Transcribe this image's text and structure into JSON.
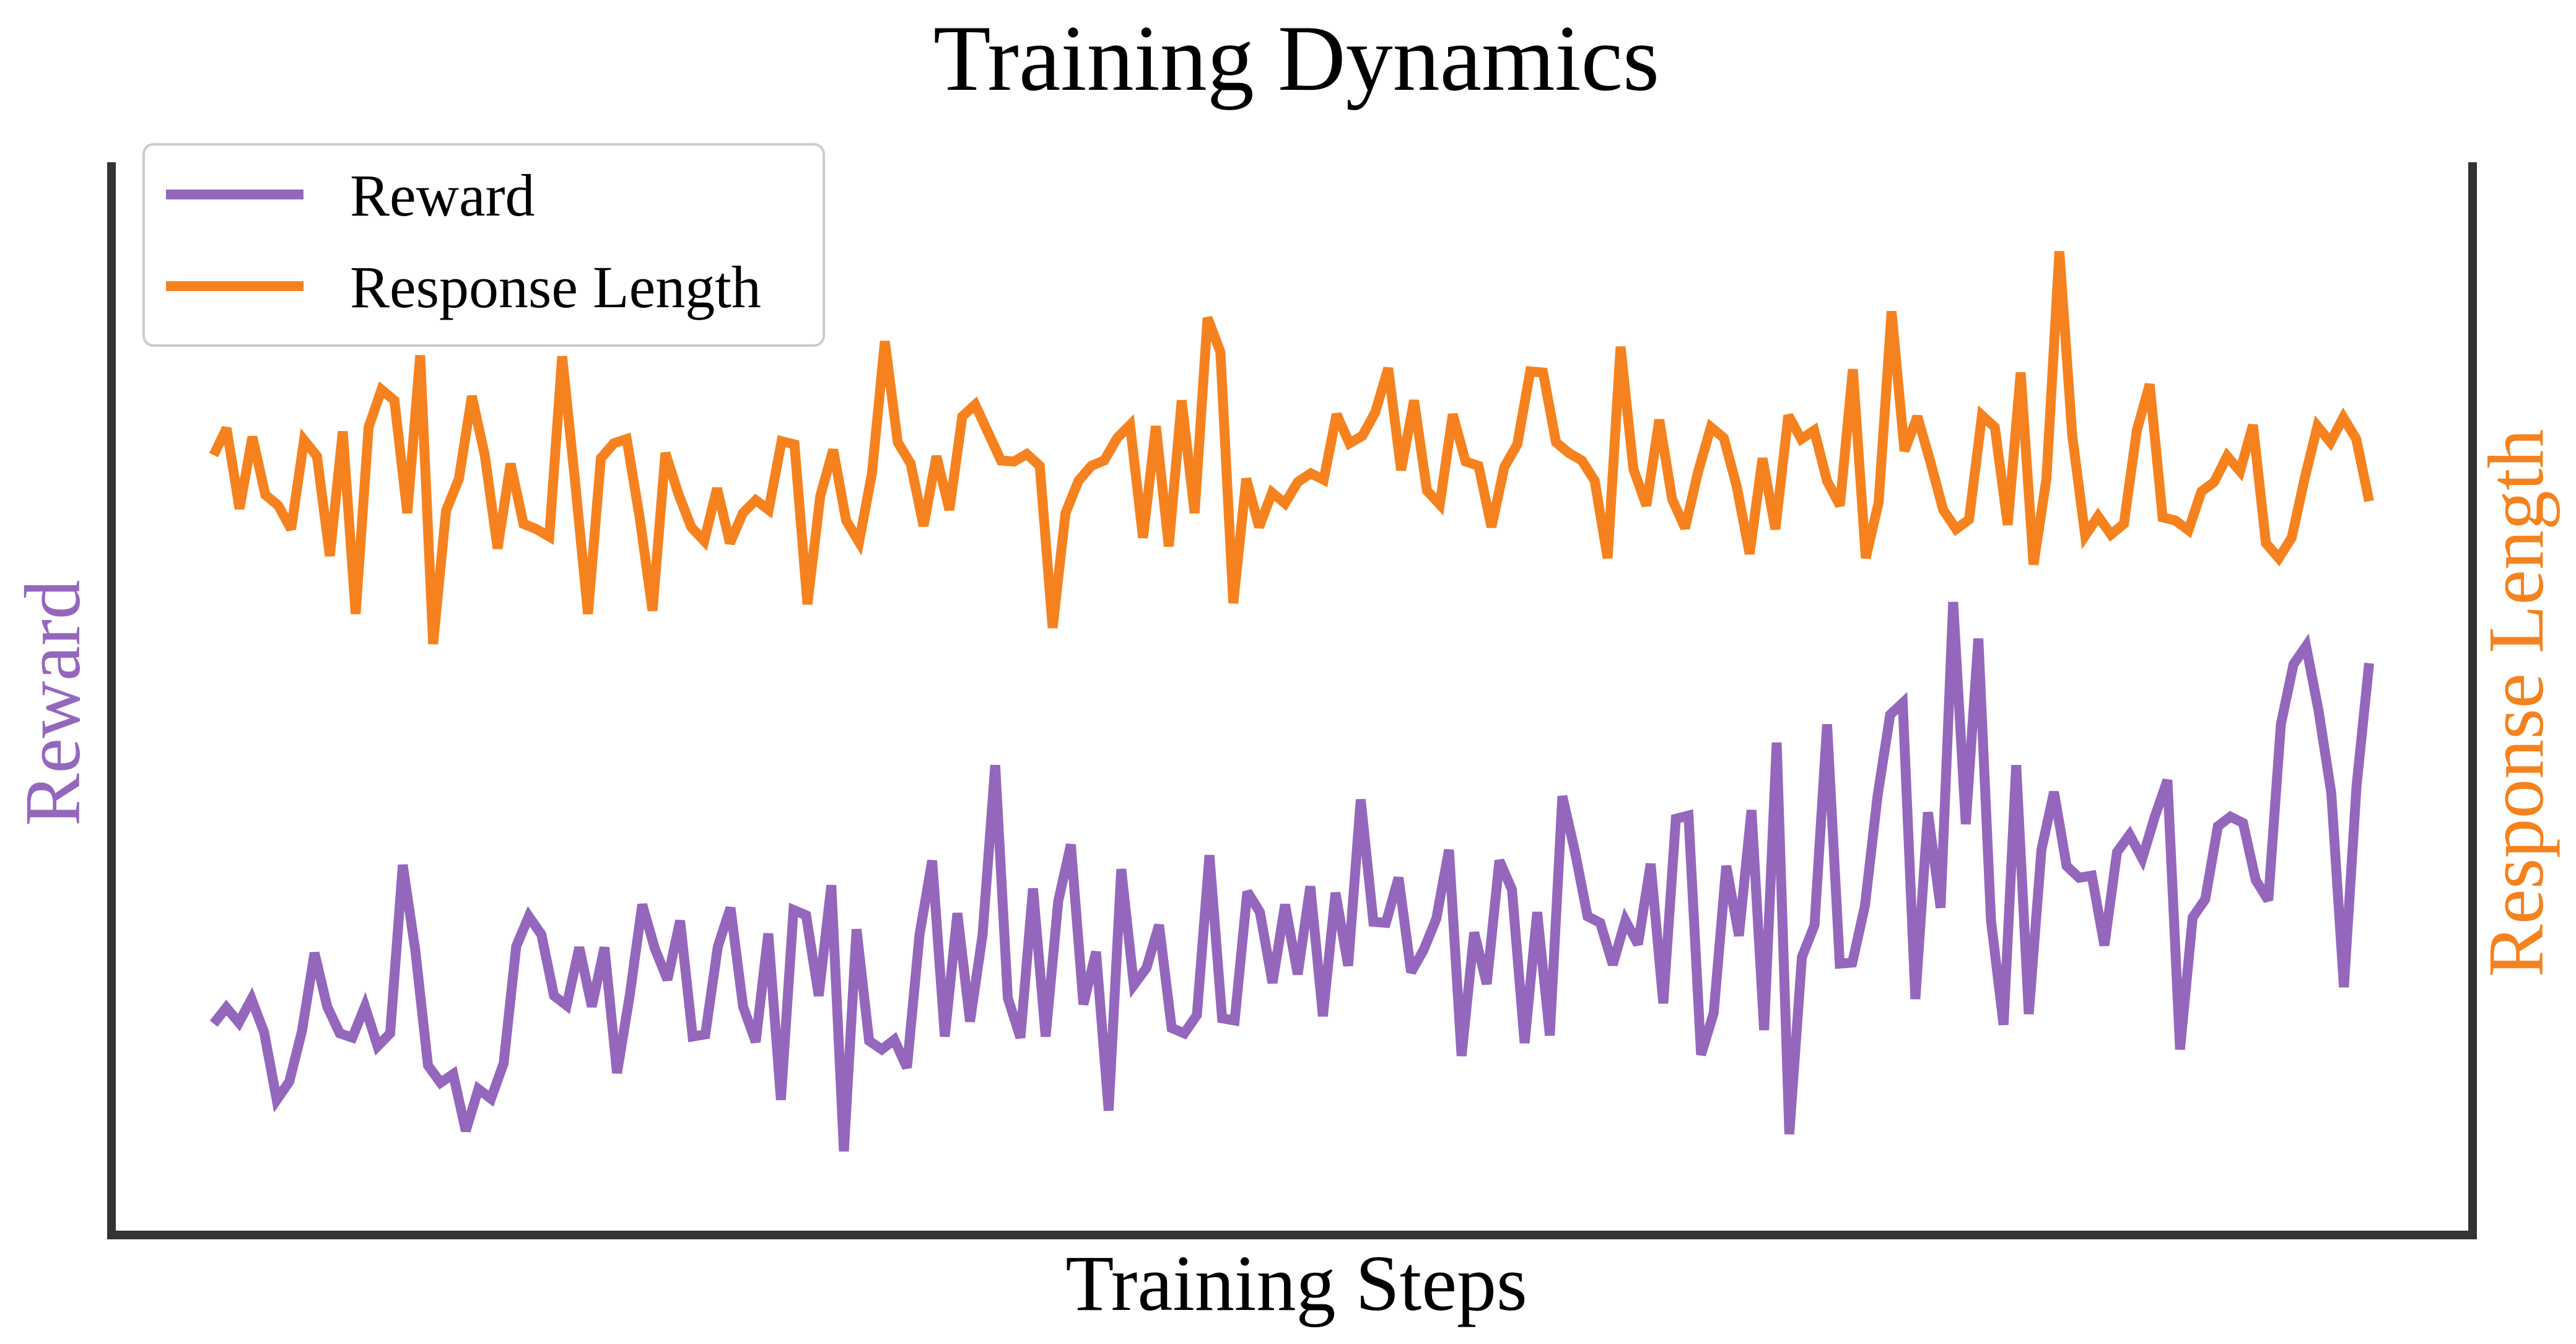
{
  "chart_data": {
    "type": "line",
    "title": "Training Dynamics",
    "xlabel": "Training Steps",
    "ylabel_left": "Reward",
    "ylabel_right": "Response Length",
    "x_ticks_visible": false,
    "y_ticks_visible": false,
    "grid": false,
    "legend_position": "top-left",
    "ylim": [
      0,
      100
    ],
    "colors": {
      "reward": "#9467bd",
      "response_length": "#f5821f",
      "axes": "#333333"
    },
    "series": [
      {
        "name": "Reward",
        "axis": "left",
        "values": [
          19.7,
          21.2,
          19.8,
          22.0,
          18.9,
          12.6,
          14.3,
          19.0,
          26.3,
          21.3,
          18.8,
          18.4,
          21.3,
          17.6,
          18.8,
          34.5,
          26.5,
          15.8,
          14.2,
          15.0,
          9.7,
          13.6,
          12.7,
          16.0,
          26.9,
          29.7,
          28.0,
          22.3,
          21.4,
          26.8,
          21.3,
          26.8,
          15.1,
          22.3,
          30.8,
          26.7,
          23.8,
          29.3,
          18.5,
          18.7,
          26.9,
          30.5,
          21.3,
          18.0,
          28.1,
          12.6,
          30.3,
          29.8,
          22.3,
          32.6,
          7.8,
          28.5,
          18.1,
          17.3,
          18.2,
          15.6,
          28.0,
          34.9,
          18.5,
          30.0,
          19.9,
          28.0,
          43.8,
          22.1,
          18.4,
          32.3,
          18.5,
          31.1,
          36.4,
          21.5,
          26.4,
          11.6,
          34.1,
          23.3,
          24.9,
          28.9,
          19.3,
          18.8,
          20.5,
          35.4,
          20.2,
          20.0,
          32.0,
          30.1,
          23.5,
          30.8,
          24.3,
          32.5,
          20.4,
          31.9,
          25.1,
          40.6,
          29.2,
          29.1,
          33.3,
          24.5,
          26.6,
          29.5,
          35.9,
          16.7,
          28.2,
          23.4,
          34.9,
          32.2,
          17.9,
          30.1,
          18.6,
          40.9,
          35.7,
          29.7,
          29.1,
          25.2,
          29.3,
          27.1,
          34.6,
          21.6,
          38.8,
          39.1,
          16.8,
          20.7,
          34.4,
          27.9,
          39.6,
          19.1,
          45.9,
          9.4,
          25.9,
          28.9,
          47.6,
          25.3,
          25.4,
          30.7,
          40.9,
          48.5,
          49.6,
          22.0,
          39.4,
          30.5,
          59.0,
          38.3,
          55.6,
          29.3,
          19.6,
          43.8,
          20.6,
          35.9,
          41.3,
          34.4,
          33.3,
          33.5,
          27.0,
          35.7,
          37.3,
          35.1,
          39.0,
          42.4,
          17.3,
          29.6,
          31.3,
          38.1,
          39.0,
          38.4,
          33.1,
          31.2,
          47.6,
          53.2,
          54.9,
          48.8,
          41.2,
          23.1,
          41.8,
          53.3
        ]
      },
      {
        "name": "Response Length",
        "axis": "right",
        "values": [
          72.7,
          75.2,
          67.7,
          74.4,
          69.0,
          68.0,
          65.8,
          74.1,
          72.6,
          63.3,
          74.9,
          57.9,
          75.3,
          78.8,
          77.8,
          67.3,
          82.0,
          55.1,
          67.5,
          70.5,
          78.2,
          72.7,
          64.0,
          71.9,
          66.3,
          65.8,
          65.1,
          81.9,
          70.2,
          57.9,
          72.4,
          73.8,
          74.2,
          66.9,
          58.2,
          72.9,
          69.1,
          66.0,
          64.7,
          69.6,
          64.5,
          67.3,
          68.5,
          67.6,
          74.0,
          73.7,
          58.8,
          68.9,
          73.2,
          66.6,
          64.6,
          71.0,
          83.3,
          73.9,
          71.9,
          66.1,
          72.6,
          67.6,
          76.3,
          77.4,
          74.8,
          72.2,
          72.1,
          72.8,
          71.7,
          56.6,
          67.3,
          70.3,
          71.7,
          72.2,
          74.3,
          75.5,
          65.0,
          75.4,
          64.2,
          77.8,
          67.3,
          85.5,
          82.3,
          58.9,
          70.5,
          66.0,
          69.2,
          68.2,
          70.2,
          71.0,
          70.4,
          76.5,
          73.8,
          74.5,
          76.7,
          80.8,
          71.3,
          77.8,
          69.4,
          68.1,
          76.5,
          72.1,
          71.7,
          66.0,
          71.6,
          73.7,
          80.5,
          80.4,
          73.9,
          72.9,
          72.2,
          70.3,
          63.1,
          82.8,
          71.4,
          68.0,
          76.0,
          68.6,
          65.9,
          71.1,
          75.3,
          74.3,
          69.8,
          63.5,
          72.4,
          65.8,
          76.4,
          74.2,
          75.0,
          70.3,
          68.0,
          80.7,
          63.1,
          68.3,
          86.1,
          73.1,
          76.3,
          72.1,
          67.6,
          65.8,
          66.7,
          76.4,
          75.3,
          66.2,
          80.4,
          62.5,
          70.5,
          91.7,
          74.5,
          65.2,
          67.0,
          65.3,
          66.3,
          75.0,
          79.3,
          66.9,
          66.6,
          65.7,
          69.3,
          70.2,
          72.6,
          71.2,
          75.5,
          64.5,
          63.1,
          65.0,
          70.5,
          75.4,
          73.9,
          76.2,
          74.2,
          68.4
        ]
      }
    ]
  }
}
